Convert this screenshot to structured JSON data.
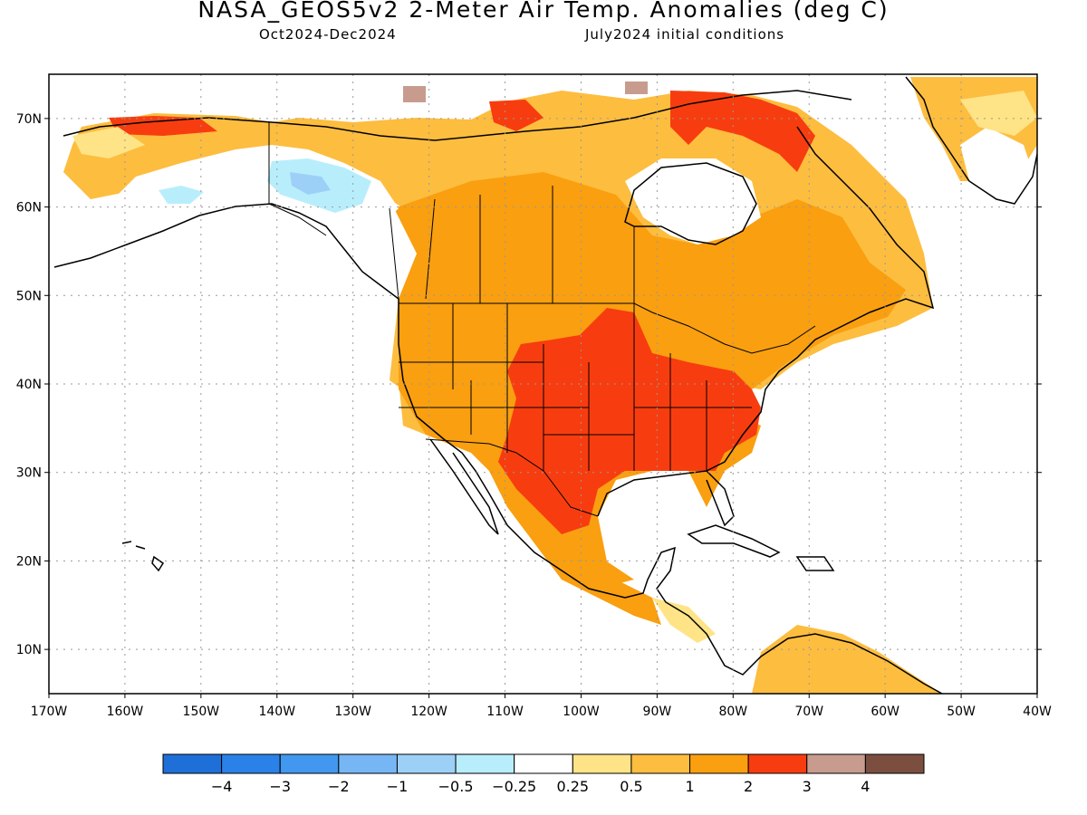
{
  "title": "NASA_GEOS5v2 2-Meter Air Temp. Anomalies (deg C)",
  "subtitle_left": "Oct2024-Dec2024",
  "subtitle_right": "July2024 initial conditions",
  "lat_labels": [
    "70N",
    "60N",
    "50N",
    "40N",
    "30N",
    "20N",
    "10N"
  ],
  "lon_labels": [
    "170W",
    "160W",
    "150W",
    "140W",
    "130W",
    "120W",
    "110W",
    "100W",
    "90W",
    "80W",
    "70W",
    "60W",
    "50W",
    "40W"
  ],
  "colorbar": {
    "colors": [
      "#1e6fd8",
      "#2a82e8",
      "#4198ee",
      "#76b6f5",
      "#9dd0f7",
      "#b8eefc",
      "#ffffff",
      "#fee487",
      "#fdbd3f",
      "#f99f10",
      "#f73d0f",
      "#c79c8e",
      "#7b4e40"
    ],
    "labels": [
      "-4",
      "-3",
      "-2",
      "-1",
      "-0.5",
      "-0.25",
      "0.25",
      "0.5",
      "1",
      "2",
      "3",
      "4"
    ]
  },
  "map": {
    "lon_range": [
      -170,
      -40
    ],
    "lat_range": [
      5,
      75
    ],
    "grid": "dotted",
    "land_color": "#ffffff",
    "ocean_color": "#ffffff"
  }
}
